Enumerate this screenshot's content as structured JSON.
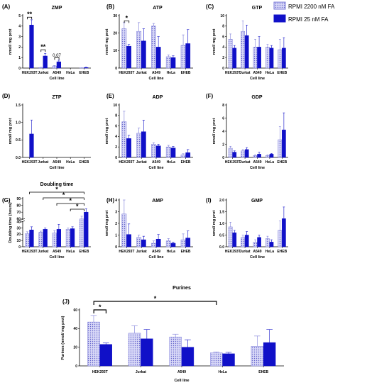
{
  "colors": {
    "light": "#a9a9ee",
    "dark": "#1010c8",
    "border_light": "#7a7ad8",
    "axis": "#000000"
  },
  "legend": [
    {
      "label": "RPMI 2200 nM FA",
      "style": "light"
    },
    {
      "label": "RPMI 25 nM FA",
      "style": "dark"
    }
  ],
  "chart_data": [
    {
      "id": "ZMP",
      "type": "bar",
      "letter": "(A)",
      "title": "ZMP",
      "ylabel": "nmol/ mg prot",
      "xlabel": "Cell line",
      "categories": [
        "HEK293T",
        "Jurkat",
        "A549",
        "HeLa",
        "EHEB"
      ],
      "ylim": [
        0,
        5
      ],
      "yticks": [
        0,
        1,
        2,
        3,
        4,
        5
      ],
      "ytick_labels": [
        "0",
        "1",
        "2",
        "3",
        "4",
        "5"
      ],
      "series": [
        {
          "style": "light",
          "values": [
            0,
            0.05,
            0.2,
            0,
            0.02
          ],
          "errors": [
            0,
            0.02,
            0.05,
            0,
            0.01
          ]
        },
        {
          "style": "dark",
          "values": [
            4.1,
            1.15,
            0.6,
            0,
            0.05
          ],
          "errors": [
            0.5,
            0.25,
            0.15,
            0,
            0.03
          ]
        }
      ],
      "annotations": [
        {
          "text": "**",
          "from": 0,
          "to": 0,
          "level": 4.85
        },
        {
          "text": "**",
          "from": 1,
          "to": 1,
          "level": 1.75
        },
        {
          "text": "0.07",
          "from": 2,
          "to": 2,
          "level": 1.0,
          "small": true
        }
      ]
    },
    {
      "id": "ATP",
      "type": "bar",
      "letter": "(B)",
      "title": "ATP",
      "ylabel": "nmol/ mg prot",
      "xlabel": "Cell line",
      "categories": [
        "HEK293T",
        "Jurkat",
        "A549",
        "HeLa",
        "EHEB"
      ],
      "ylim": [
        0,
        30
      ],
      "yticks": [
        0,
        10,
        20,
        30
      ],
      "ytick_labels": [
        "0",
        "10",
        "20",
        "30"
      ],
      "series": [
        {
          "style": "light",
          "values": [
            22.5,
            21,
            24,
            6.5,
            13
          ],
          "errors": [
            3.5,
            5,
            1.5,
            1,
            6
          ]
        },
        {
          "style": "dark",
          "values": [
            12.5,
            15.5,
            12,
            6,
            14
          ],
          "errors": [
            1,
            7,
            6,
            1,
            8
          ]
        }
      ],
      "annotations": [
        {
          "text": "*",
          "from": 0,
          "to": 0,
          "level": 27
        }
      ]
    },
    {
      "id": "GTP",
      "type": "bar",
      "letter": "(C)",
      "title": "GTP",
      "ylabel": "nmol/ mg prot",
      "xlabel": "Cell line",
      "categories": [
        "HEK293T",
        "Jurkat",
        "A549",
        "HeLa",
        "EHEB"
      ],
      "ylim": [
        0,
        10
      ],
      "yticks": [
        0,
        2,
        4,
        6,
        8,
        10
      ],
      "ytick_labels": [
        "0",
        "2",
        "4",
        "6",
        "8",
        "10"
      ],
      "series": [
        {
          "style": "light",
          "values": [
            5.5,
            7,
            4,
            4,
            3.5
          ],
          "errors": [
            1,
            2,
            1.5,
            0.5,
            2
          ]
        },
        {
          "style": "dark",
          "values": [
            3.8,
            6.2,
            4,
            3.8,
            3.8
          ],
          "errors": [
            0.5,
            2,
            2,
            0.5,
            2
          ]
        }
      ],
      "annotations": []
    },
    {
      "id": "ZTP",
      "type": "bar",
      "letter": "(D)",
      "title": "ZTP",
      "ylabel": "nmol/ mg prot",
      "xlabel": "Cell line",
      "categories": [
        "HEK293T",
        "Jurkat",
        "A549",
        "HeLa",
        "EHEB"
      ],
      "ylim": [
        0,
        1.5
      ],
      "yticks": [
        0,
        0.5,
        1.0,
        1.5
      ],
      "ytick_labels": [
        "0.0",
        "0.5",
        "1.0",
        "1.5"
      ],
      "series": [
        {
          "style": "light",
          "values": [
            0,
            0,
            0,
            0,
            0
          ],
          "errors": [
            0,
            0,
            0,
            0,
            0
          ]
        },
        {
          "style": "dark",
          "values": [
            0.67,
            0,
            0,
            0,
            0
          ],
          "errors": [
            0.4,
            0,
            0,
            0,
            0
          ]
        }
      ],
      "annotations": []
    },
    {
      "id": "ADP",
      "type": "bar",
      "letter": "(E)",
      "title": "ADP",
      "ylabel": "nmol/ mg prot",
      "xlabel": "Cell line",
      "categories": [
        "HEK293T",
        "Jurkat",
        "A549",
        "HeLa",
        "EHEB"
      ],
      "ylim": [
        0,
        10
      ],
      "yticks": [
        0,
        2,
        4,
        6,
        8,
        10
      ],
      "ytick_labels": [
        "0",
        "2",
        "4",
        "6",
        "8",
        "10"
      ],
      "series": [
        {
          "style": "light",
          "values": [
            6.8,
            4.6,
            2.5,
            2,
            0.5
          ],
          "errors": [
            2,
            1,
            0.3,
            0.3,
            0.2
          ]
        },
        {
          "style": "dark",
          "values": [
            3.6,
            4.9,
            2.2,
            1.8,
            0.9
          ],
          "errors": [
            0.6,
            2.2,
            0.3,
            0.3,
            0.6
          ]
        }
      ],
      "annotations": []
    },
    {
      "id": "GDP",
      "type": "bar",
      "letter": "(F)",
      "title": "GDP",
      "ylabel": "nmol/ mg prot",
      "xlabel": "Cell line",
      "categories": [
        "HEK293T",
        "Jurkat",
        "A549",
        "HeLa",
        "EHEB"
      ],
      "ylim": [
        0,
        8
      ],
      "yticks": [
        0,
        2,
        4,
        6,
        8
      ],
      "ytick_labels": [
        "0",
        "2",
        "4",
        "6",
        "8"
      ],
      "series": [
        {
          "style": "light",
          "values": [
            1.4,
            1,
            0.3,
            0.3,
            2.7
          ],
          "errors": [
            0.3,
            0.2,
            0.1,
            0.1,
            2
          ]
        },
        {
          "style": "dark",
          "values": [
            0.8,
            1.2,
            0.5,
            0.5,
            4.2
          ],
          "errors": [
            0.2,
            0.3,
            0.3,
            0.1,
            2.6
          ]
        }
      ],
      "annotations": []
    },
    {
      "id": "Doubling",
      "type": "bar",
      "letter": "(G)",
      "title": "Doubling time",
      "ylabel": "Doubling time (hours)",
      "xlabel": "Cell line",
      "categories": [
        "HEK293T",
        "Jurkat",
        "A549",
        "HeLa",
        "EHEB"
      ],
      "ylim": [
        0,
        90
      ],
      "yticks": [
        0,
        10,
        20,
        30,
        40,
        60,
        70,
        80,
        90
      ],
      "ytick_labels": [
        "0",
        "10",
        "20",
        "30",
        "40",
        "60",
        "70",
        "80",
        "90"
      ],
      "broken_axis": true,
      "series": [
        {
          "style": "light",
          "values": [
            21,
            23,
            22,
            28,
            60
          ],
          "errors": [
            3,
            2,
            4,
            2,
            4
          ]
        },
        {
          "style": "dark",
          "values": [
            27,
            28,
            28,
            29,
            70
          ],
          "errors": [
            5,
            2,
            8,
            3,
            5
          ]
        }
      ],
      "brackets": [
        {
          "text": "*",
          "from": 0,
          "to": 4,
          "row": 0
        },
        {
          "text": "*",
          "from": 1,
          "to": 4,
          "row": 1
        },
        {
          "text": "*",
          "from": 2,
          "to": 4,
          "row": 2
        },
        {
          "text": "*",
          "from": 3,
          "to": 4,
          "row": 3
        }
      ]
    },
    {
      "id": "AMP",
      "type": "bar",
      "letter": "(H)",
      "title": "AMP",
      "ylabel": "nmol/ mg prot",
      "xlabel": "Cell line",
      "categories": [
        "HEK293T",
        "Jurkat",
        "A549",
        "HeLa",
        "EHEB"
      ],
      "ylim": [
        0,
        4
      ],
      "yticks": [
        0,
        1,
        2,
        3,
        4
      ],
      "ytick_labels": [
        "0",
        "1",
        "2",
        "3",
        "4"
      ],
      "series": [
        {
          "style": "light",
          "values": [
            2.8,
            0.8,
            0.3,
            0.5,
            0.6
          ],
          "errors": [
            1.2,
            0.2,
            0.2,
            0.2,
            0.5
          ]
        },
        {
          "style": "dark",
          "values": [
            1.05,
            0.6,
            0.65,
            0.3,
            0.75
          ],
          "errors": [
            0.9,
            0.3,
            0.4,
            0.1,
            0.6
          ]
        }
      ],
      "annotations": []
    },
    {
      "id": "GMP",
      "type": "bar",
      "letter": "(I)",
      "title": "GMP",
      "ylabel": "nmol/ mg prot",
      "xlabel": "Cell line",
      "categories": [
        "HEK293T",
        "Jurkat",
        "A549",
        "HeLa",
        "EHEB"
      ],
      "ylim": [
        0,
        2.0
      ],
      "yticks": [
        0,
        0.5,
        1.0,
        1.5,
        2.0
      ],
      "ytick_labels": [
        "0.0",
        "0.5",
        "1.0",
        "1.5",
        "2.0"
      ],
      "series": [
        {
          "style": "light",
          "values": [
            0.85,
            0.4,
            0.2,
            0.35,
            0.7
          ],
          "errors": [
            0.2,
            0.1,
            0.1,
            0.1,
            0.4
          ]
        },
        {
          "style": "dark",
          "values": [
            0.6,
            0.5,
            0.4,
            0.2,
            1.2
          ],
          "errors": [
            0.1,
            0.15,
            0.1,
            0.1,
            0.5
          ]
        }
      ],
      "annotations": []
    },
    {
      "id": "Purines",
      "type": "bar",
      "letter": "(J)",
      "title": "Purines",
      "ylabel": "Purines (nmol/ mg prot)",
      "xlabel": "Cell line",
      "categories": [
        "HEK293T",
        "Jurkat",
        "A549",
        "HeLa",
        "EHEB"
      ],
      "ylim": [
        0,
        60
      ],
      "yticks": [
        0,
        20,
        40,
        60
      ],
      "ytick_labels": [
        "0",
        "20",
        "40",
        "60"
      ],
      "series": [
        {
          "style": "light",
          "values": [
            47,
            35,
            31,
            14,
            21
          ],
          "errors": [
            7,
            8,
            3,
            1,
            11
          ]
        },
        {
          "style": "dark",
          "values": [
            23,
            29,
            20,
            13,
            25
          ],
          "errors": [
            1.5,
            10,
            8,
            1.5,
            14
          ]
        }
      ],
      "brackets": [
        {
          "text": "*",
          "fromBar": [
            0,
            0
          ],
          "toBar": [
            0,
            1
          ],
          "level": 59
        },
        {
          "text": "*",
          "fromBar": [
            0,
            0
          ],
          "toBar": [
            3,
            0
          ],
          "level": 70
        }
      ]
    }
  ]
}
